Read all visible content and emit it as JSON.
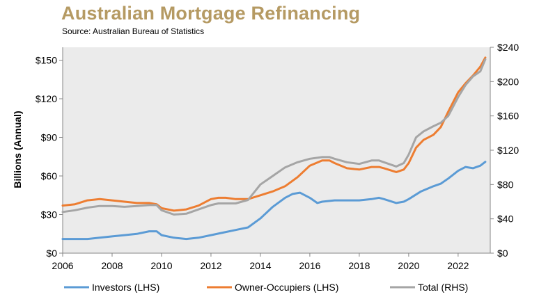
{
  "header": {
    "title": "Australian Mortgage Refinancing",
    "source": "Source: Australian Bureau of Statistics"
  },
  "chart_data": {
    "type": "line",
    "title": "Australian Mortgage Refinancing",
    "subtitle": "Source: Australian Bureau of Statistics",
    "xlabel": "",
    "ylabel_left": "Billions (Annual)",
    "ylabel_right": "",
    "xlim": [
      2006,
      2023.3
    ],
    "ylim_left": [
      0,
      160
    ],
    "ylim_right": [
      0,
      240
    ],
    "x_ticks": [
      "2006",
      "2008",
      "2010",
      "2012",
      "2014",
      "2016",
      "2018",
      "2020",
      "2022"
    ],
    "y_ticks_left": [
      "$0",
      "$30",
      "$60",
      "$90",
      "$120",
      "$150"
    ],
    "y_ticks_right": [
      "$0",
      "$40",
      "$80",
      "$120",
      "$160",
      "$200",
      "$240"
    ],
    "grid": false,
    "plot_background": "#ebebeb",
    "legend_position": "bottom",
    "series": [
      {
        "name": "Investors (LHS)",
        "axis": "left",
        "color": "#5b9bd5",
        "x": [
          2006,
          2006.5,
          2007,
          2007.5,
          2008,
          2008.5,
          2009,
          2009.5,
          2009.8,
          2010,
          2010.5,
          2011,
          2011.5,
          2012,
          2012.5,
          2013,
          2013.5,
          2014,
          2014.5,
          2015,
          2015.3,
          2015.6,
          2016,
          2016.3,
          2016.5,
          2017,
          2017.5,
          2018,
          2018.5,
          2018.8,
          2019,
          2019.5,
          2019.8,
          2020,
          2020.5,
          2021,
          2021.3,
          2021.6,
          2022,
          2022.3,
          2022.6,
          2022.9,
          2023.1
        ],
        "values": [
          11,
          11,
          11,
          12,
          13,
          14,
          15,
          17,
          17,
          14,
          12,
          11,
          12,
          14,
          16,
          18,
          20,
          27,
          36,
          43,
          46,
          47,
          43,
          39,
          40,
          41,
          41,
          41,
          42,
          43,
          42,
          39,
          40,
          42,
          48,
          52,
          54,
          58,
          64,
          67,
          66,
          68,
          71
        ]
      },
      {
        "name": "Owner-Occupiers (LHS)",
        "axis": "left",
        "color": "#ed7d31",
        "x": [
          2006,
          2006.5,
          2007,
          2007.5,
          2008,
          2008.5,
          2009,
          2009.5,
          2009.8,
          2010,
          2010.5,
          2011,
          2011.5,
          2012,
          2012.3,
          2012.6,
          2013,
          2013.5,
          2014,
          2014.5,
          2015,
          2015.5,
          2016,
          2016.5,
          2016.8,
          2017,
          2017.5,
          2018,
          2018.5,
          2018.8,
          2019,
          2019.5,
          2019.8,
          2020,
          2020.3,
          2020.6,
          2021,
          2021.3,
          2021.6,
          2022,
          2022.3,
          2022.6,
          2022.9,
          2023.1
        ],
        "values": [
          37,
          38,
          41,
          42,
          41,
          40,
          39,
          39,
          38,
          35,
          33,
          34,
          37,
          42,
          43,
          43,
          42,
          42,
          45,
          48,
          52,
          59,
          68,
          72,
          72,
          70,
          66,
          65,
          67,
          67,
          66,
          63,
          65,
          70,
          82,
          88,
          92,
          98,
          110,
          125,
          132,
          138,
          145,
          152
        ]
      },
      {
        "name": "Total (RHS)",
        "axis": "right",
        "color": "#a5a5a5",
        "x": [
          2006,
          2006.5,
          2007,
          2007.5,
          2008,
          2008.5,
          2009,
          2009.5,
          2009.8,
          2010,
          2010.5,
          2011,
          2011.5,
          2012,
          2012.3,
          2012.6,
          2013,
          2013.5,
          2014,
          2014.5,
          2015,
          2015.5,
          2016,
          2016.5,
          2016.8,
          2017,
          2017.5,
          2018,
          2018.5,
          2018.8,
          2019,
          2019.5,
          2019.8,
          2020,
          2020.3,
          2020.6,
          2021,
          2021.3,
          2021.6,
          2022,
          2022.3,
          2022.6,
          2022.9,
          2023.1
        ],
        "values": [
          48,
          50,
          53,
          55,
          55,
          54,
          55,
          56,
          56,
          50,
          45,
          46,
          51,
          56,
          58,
          58,
          58,
          62,
          80,
          90,
          100,
          106,
          110,
          112,
          112,
          110,
          106,
          104,
          108,
          108,
          106,
          101,
          105,
          115,
          135,
          142,
          148,
          152,
          160,
          182,
          196,
          206,
          212,
          226
        ]
      }
    ]
  }
}
